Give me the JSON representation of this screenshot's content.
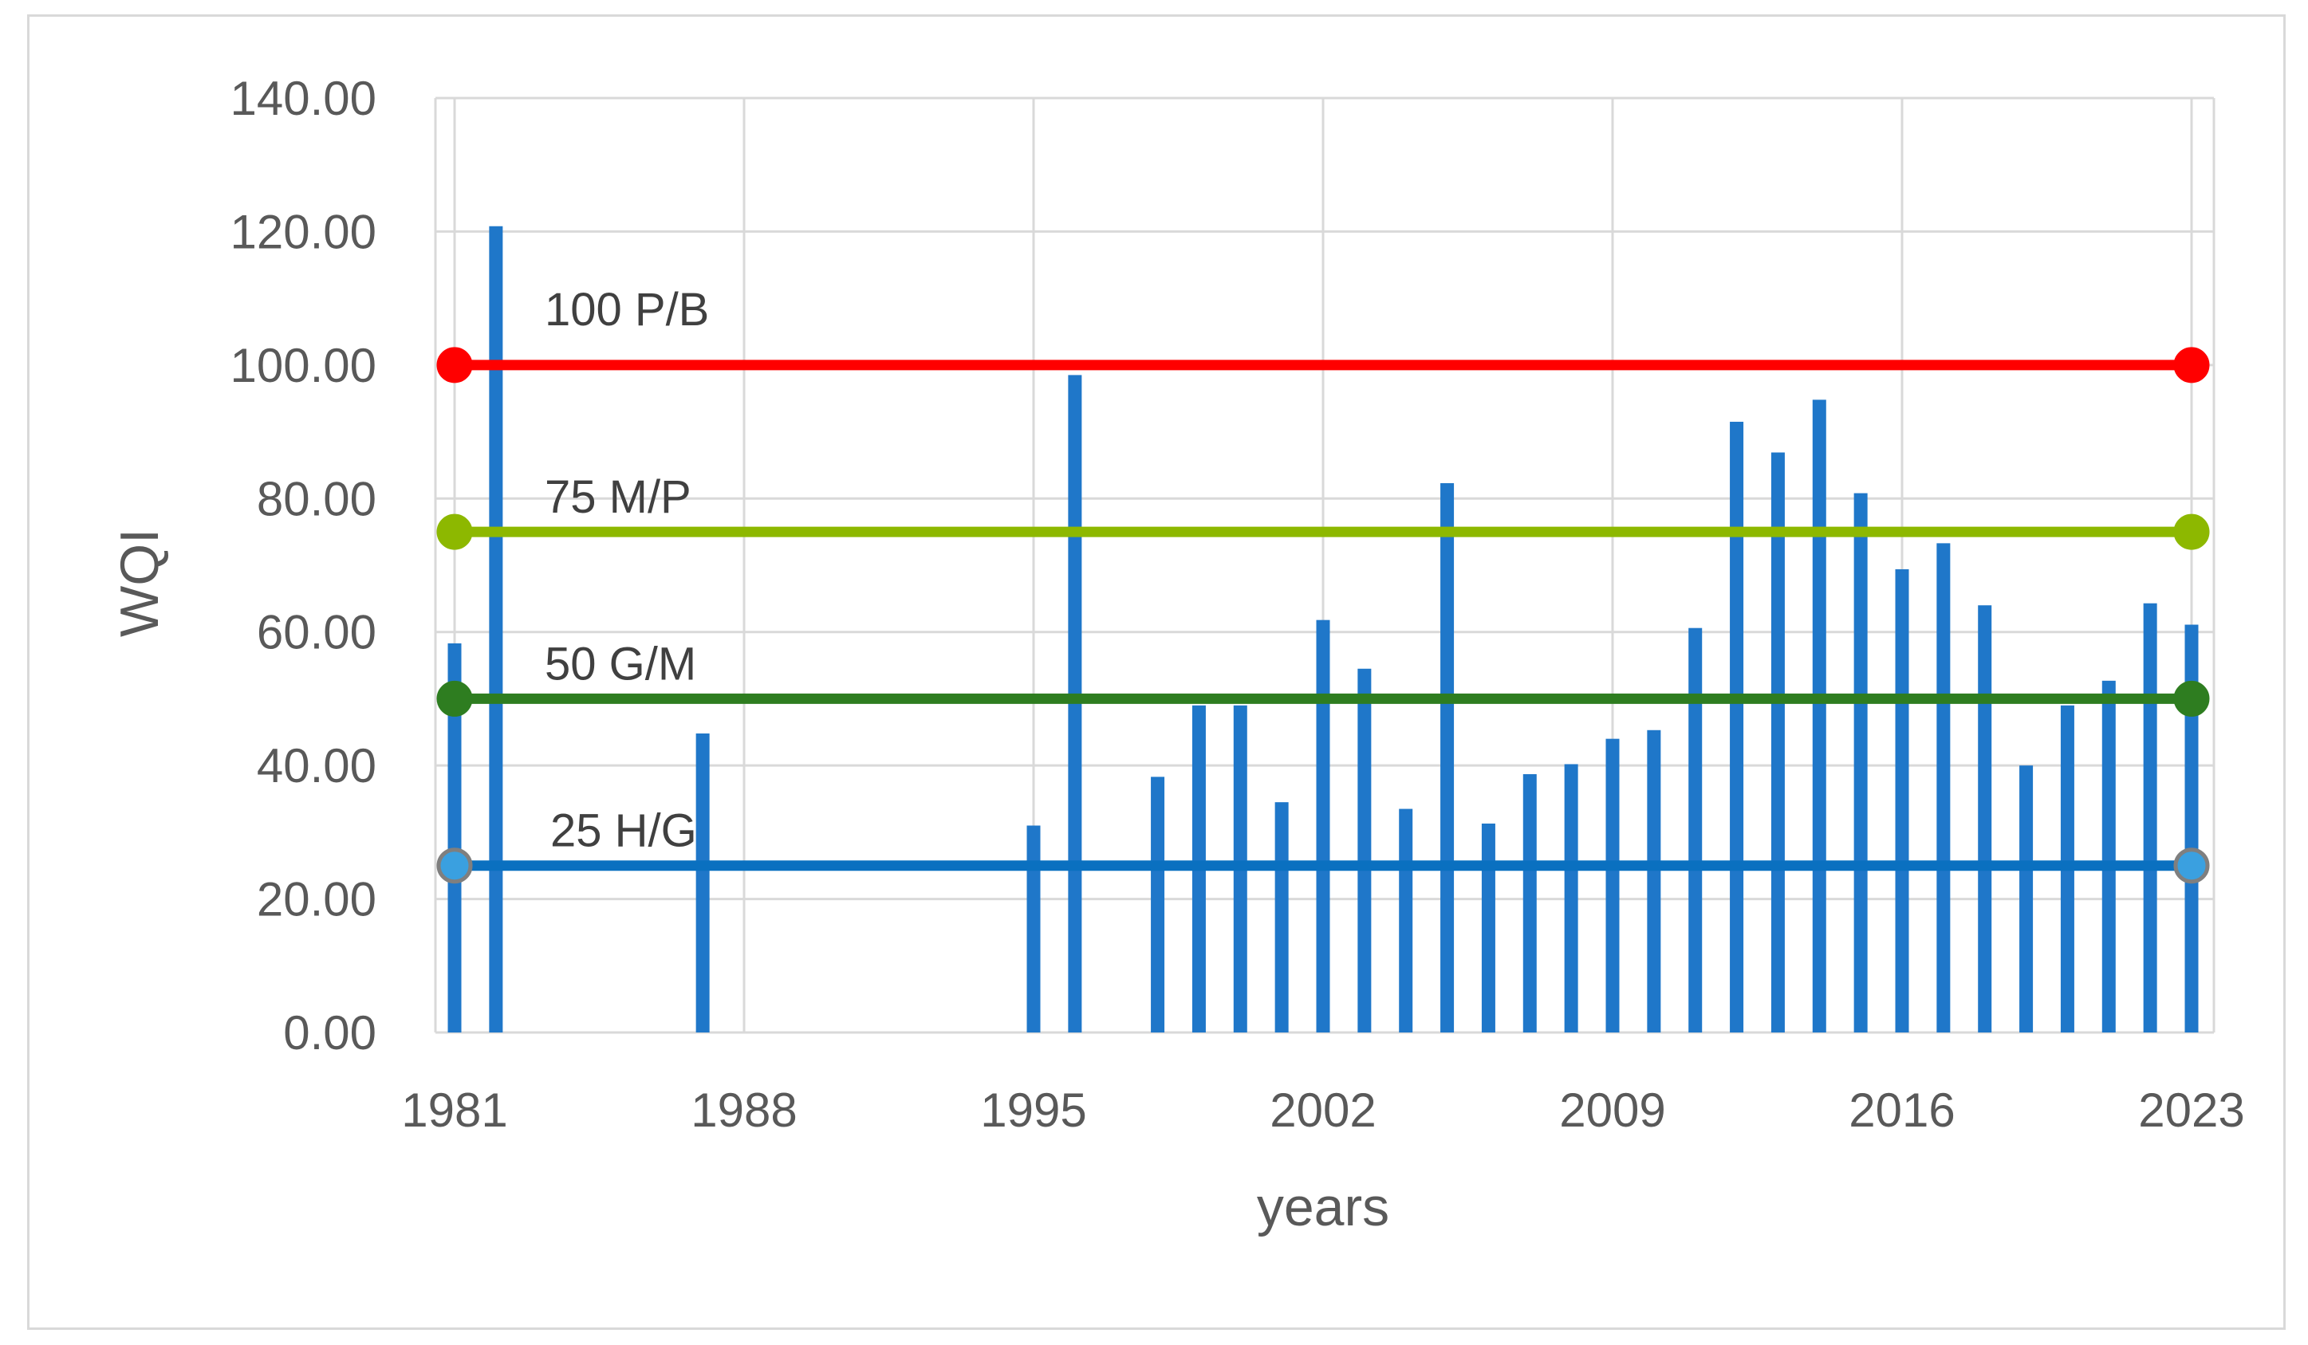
{
  "chart_data": {
    "type": "bar",
    "xlabel": "years",
    "ylabel": "WQI",
    "ylim": [
      0,
      140
    ],
    "xlim": [
      1981,
      2023
    ],
    "y_ticks": [
      "0.00",
      "20.00",
      "40.00",
      "60.00",
      "80.00",
      "100.00",
      "120.00",
      "140.00"
    ],
    "x_ticks": [
      "1981",
      "1988",
      "1995",
      "2002",
      "2009",
      "2016",
      "2023"
    ],
    "grid": true,
    "bar_color": "#1f77c9",
    "bars": [
      {
        "year": 1981,
        "value": 58.3
      },
      {
        "year": 1982,
        "value": 120.8
      },
      {
        "year": 1987,
        "value": 44.8
      },
      {
        "year": 1995,
        "value": 31.0
      },
      {
        "year": 1996,
        "value": 98.5
      },
      {
        "year": 1998,
        "value": 38.3
      },
      {
        "year": 1999,
        "value": 49.0
      },
      {
        "year": 2000,
        "value": 49.0
      },
      {
        "year": 2001,
        "value": 34.5
      },
      {
        "year": 2002,
        "value": 61.8
      },
      {
        "year": 2003,
        "value": 54.5
      },
      {
        "year": 2004,
        "value": 33.5
      },
      {
        "year": 2005,
        "value": 82.3
      },
      {
        "year": 2006,
        "value": 31.3
      },
      {
        "year": 2007,
        "value": 38.7
      },
      {
        "year": 2008,
        "value": 40.2
      },
      {
        "year": 2009,
        "value": 44.0
      },
      {
        "year": 2010,
        "value": 45.3
      },
      {
        "year": 2011,
        "value": 60.6
      },
      {
        "year": 2012,
        "value": 91.5
      },
      {
        "year": 2013,
        "value": 86.9
      },
      {
        "year": 2014,
        "value": 94.8
      },
      {
        "year": 2015,
        "value": 80.8
      },
      {
        "year": 2016,
        "value": 69.4
      },
      {
        "year": 2017,
        "value": 73.3
      },
      {
        "year": 2018,
        "value": 64.0
      },
      {
        "year": 2019,
        "value": 40.0
      },
      {
        "year": 2020,
        "value": 49.0
      },
      {
        "year": 2021,
        "value": 52.7
      },
      {
        "year": 2022,
        "value": 64.3
      },
      {
        "year": 2023,
        "value": 61.1
      }
    ],
    "reference_lines": [
      {
        "value": 100,
        "label": "100 P/B",
        "color": "#ff0000",
        "marker_fill": "#ff0000",
        "marker_stroke": "#ff0000"
      },
      {
        "value": 75,
        "label": "75 M/P",
        "color": "#8db800",
        "marker_fill": "#8db800",
        "marker_stroke": "#8db800"
      },
      {
        "value": 50,
        "label": "50 G/M",
        "color": "#2e7d20",
        "marker_fill": "#2e7d20",
        "marker_stroke": "#2e7d20"
      },
      {
        "value": 25,
        "label": "25 H/G",
        "color": "#0a70c0",
        "marker_fill": "#3aa0e0",
        "marker_stroke": "#7f7f7f"
      }
    ]
  }
}
